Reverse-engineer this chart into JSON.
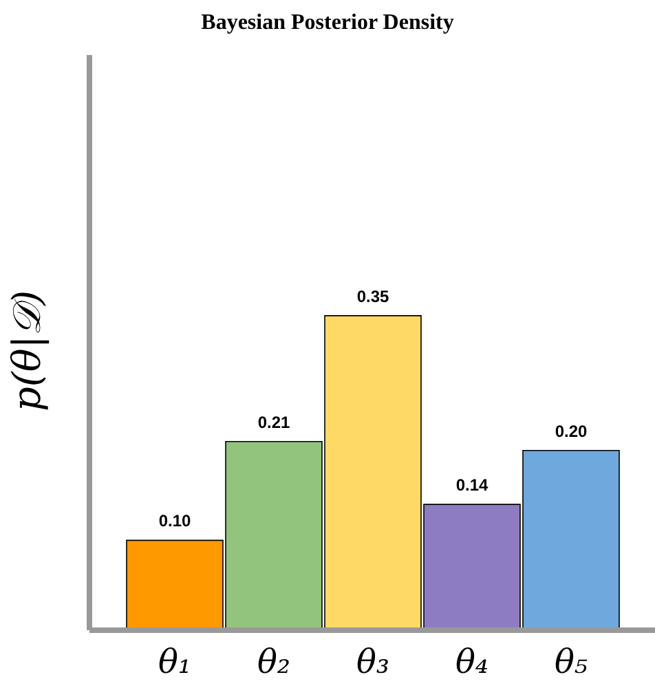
{
  "chart_data": {
    "type": "bar",
    "title": "Bayesian Posterior Density",
    "ylabel": "p(θ|𝒟)",
    "categories": [
      "θ₁",
      "θ₂",
      "θ₃",
      "θ₄",
      "θ₅"
    ],
    "values": [
      0.1,
      0.21,
      0.35,
      0.14,
      0.2
    ],
    "colors": [
      "#ff9900",
      "#93c47d",
      "#ffd966",
      "#8e7cc3",
      "#6fa8dc"
    ],
    "value_labels": [
      "0.10",
      "0.21",
      "0.35",
      "0.14",
      "0.20"
    ],
    "grid": false,
    "legend": false
  }
}
